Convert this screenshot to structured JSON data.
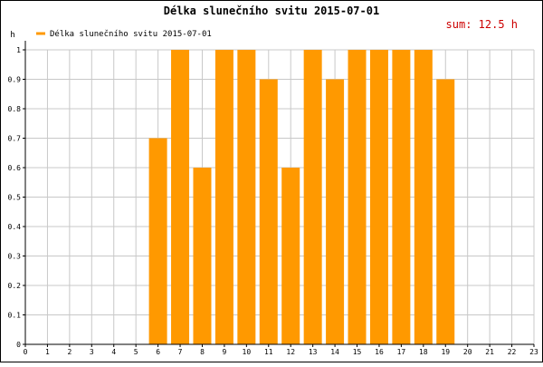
{
  "chart_data": {
    "type": "bar",
    "title": "Délka slunečního svitu 2015-07-01",
    "ylabel": "h",
    "xlabel": "",
    "sum_label": "sum: 12.5 h",
    "legend": {
      "label": "Délka slunečního svitu 2015-07-01",
      "placement": "top-left"
    },
    "x_ticks": [
      "0",
      "1",
      "2",
      "3",
      "4",
      "5",
      "6",
      "7",
      "8",
      "9",
      "10",
      "11",
      "12",
      "13",
      "14",
      "15",
      "16",
      "17",
      "18",
      "19",
      "20",
      "21",
      "22",
      "23"
    ],
    "y_ticks": [
      "0",
      "0.1",
      "0.2",
      "0.3",
      "0.4",
      "0.5",
      "0.6",
      "0.7",
      "0.8",
      "0.9",
      "1"
    ],
    "xlim": [
      0,
      23
    ],
    "ylim": [
      0,
      1
    ],
    "grid": true,
    "series": [
      {
        "name": "Délka slunečního svitu 2015-07-01",
        "color": "#ff9900",
        "points": [
          {
            "x": 6,
            "y": 0.7
          },
          {
            "x": 7,
            "y": 1.0
          },
          {
            "x": 8,
            "y": 0.6
          },
          {
            "x": 9,
            "y": 1.0
          },
          {
            "x": 10,
            "y": 1.0
          },
          {
            "x": 11,
            "y": 0.9
          },
          {
            "x": 12,
            "y": 0.6
          },
          {
            "x": 13,
            "y": 1.0
          },
          {
            "x": 14,
            "y": 0.9
          },
          {
            "x": 15,
            "y": 1.0
          },
          {
            "x": 16,
            "y": 1.0
          },
          {
            "x": 17,
            "y": 1.0
          },
          {
            "x": 18,
            "y": 1.0
          },
          {
            "x": 19,
            "y": 0.9
          }
        ]
      }
    ]
  },
  "colors": {
    "background": "#ffffff",
    "grid": "#c8c8c8",
    "axis": "#000000",
    "bar": "#ff9900",
    "sum_text": "#cc0000",
    "frame": "#000000"
  }
}
